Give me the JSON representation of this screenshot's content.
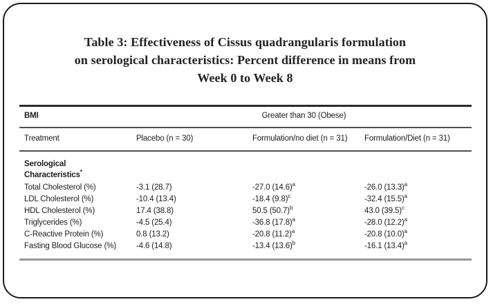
{
  "card": {
    "title_line1": "Table 3: Effectiveness of Cissus quadrangularis formulation",
    "title_line2": "on serological characteristics: Percent difference in means from",
    "title_line3": "Week 0 to Week 8"
  },
  "table": {
    "bmi_label": "BMI",
    "bmi_value": "Greater than 30 (Obese)",
    "headers": {
      "treatment": "Treatment",
      "placebo": "Placebo (n = 30)",
      "formulation_no_diet": "Formulation/no diet (n = 31)",
      "formulation_diet": "Formulation/Diet (n = 31)"
    },
    "section_title_line1": "Serological",
    "section_title_line2": "Characteristics",
    "section_marker": "*",
    "rows": [
      {
        "label": "Total Cholesterol (%)",
        "placebo": "-3.1 (28.7)",
        "no_diet": "-27.0 (14.6)",
        "no_diet_sup": "a",
        "diet": "-26.0 (13.3)",
        "diet_sup": "a"
      },
      {
        "label": "LDL Cholesterol (%)",
        "placebo": "-10.4 (13.4)",
        "no_diet": "-18.4 (9.8)",
        "no_diet_sup": "c",
        "diet": "-32.4 (15.5)",
        "diet_sup": "a"
      },
      {
        "label": "HDL Cholesterol (%)",
        "placebo": "17.4 (38.8)",
        "no_diet": "50.5 (50.7)",
        "no_diet_sup": "b",
        "diet": "43.0 (39.5)",
        "diet_sup": "c"
      },
      {
        "label": "Triglycerides (%)",
        "placebo": "-4.5 (25.4)",
        "no_diet": "-36.8 (17.8)",
        "no_diet_sup": "a",
        "diet": "-28.0 (12.2)",
        "diet_sup": "a"
      },
      {
        "label": "C-Reactive Protein (%)",
        "placebo": "0.8 (13.2)",
        "no_diet": "-20.8 (11.2)",
        "no_diet_sup": "a",
        "diet": "-20.8 (10.0)",
        "diet_sup": "a"
      },
      {
        "label": "Fasting Blood Glucose (%)",
        "placebo": "-4.6 (14.8)",
        "no_diet": "-13.4 (13.6)",
        "no_diet_sup": "b",
        "diet": "-16.1 (13.4)",
        "diet_sup": "a"
      }
    ]
  },
  "colors": {
    "text": "#1c1c1c",
    "border": "#1a1a1a",
    "rule_dark": "#2b2b2b",
    "rule_mid": "#4f4f4f",
    "rule_light": "#979797"
  }
}
